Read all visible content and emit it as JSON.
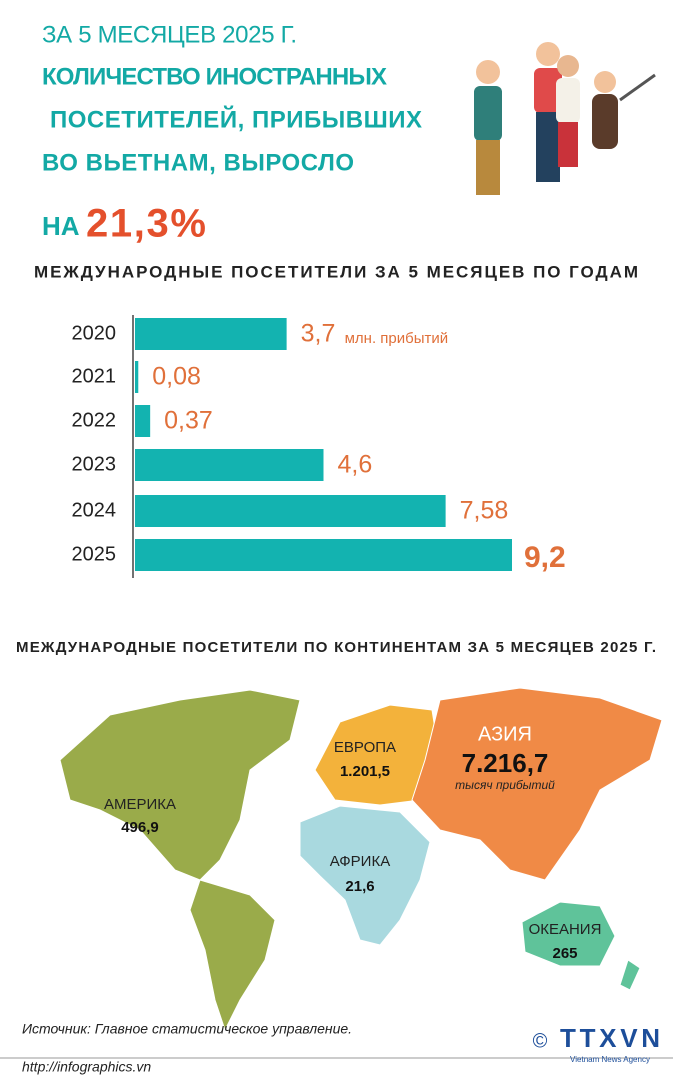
{
  "header": {
    "line1": "ЗА 5 МЕСЯЦЕВ 2025 Г.",
    "line2": "КОЛИЧЕСТВО ИНОСТРАННЫХ",
    "line3": "ПОСЕТИТЕЛЕЙ, ПРИБЫВШИХ",
    "line4": "ВО ВЬЕТНАМ, ВЫРОСЛО",
    "prefix": "НА",
    "growth": "21,3%"
  },
  "chart_data": {
    "type": "bar",
    "orientation": "horizontal",
    "title": "МЕЖДУНАРОДНЫЕ ПОСЕТИТЕЛИ ЗА 5 МЕСЯЦЕВ ПО ГОДАМ",
    "categories": [
      "2020",
      "2021",
      "2022",
      "2023",
      "2024",
      "2025"
    ],
    "values": [
      3.7,
      0.08,
      0.37,
      4.6,
      7.58,
      9.2
    ],
    "value_labels": [
      "3,7",
      "0,08",
      "0,37",
      "4,6",
      "7,58",
      "9,2"
    ],
    "unit": "млн. прибытий",
    "color": "#13b3b0",
    "label_color": "#e0703a"
  },
  "map": {
    "title": "МЕЖДУНАРОДНЫЕ ПОСЕТИТЕЛИ ПО КОНТИНЕНТАМ ЗА 5 МЕСЯЦЕВ 2025 Г.",
    "unit": "тысяч прибытий",
    "regions": [
      {
        "name": "АМЕРИКА",
        "value": "496,9"
      },
      {
        "name": "ЕВРОПА",
        "value": "1.201,5"
      },
      {
        "name": "АЗИЯ",
        "value": "7.216,7"
      },
      {
        "name": "АФРИКА",
        "value": "21,6"
      },
      {
        "name": "ОКЕАНИЯ",
        "value": "265"
      }
    ]
  },
  "footer": {
    "source": "Источник: Главное статистическое управление.",
    "url": "http://infographics.vn",
    "copyright": "©",
    "logo": "TTXVN",
    "agency": "Vietnam News Agency"
  }
}
